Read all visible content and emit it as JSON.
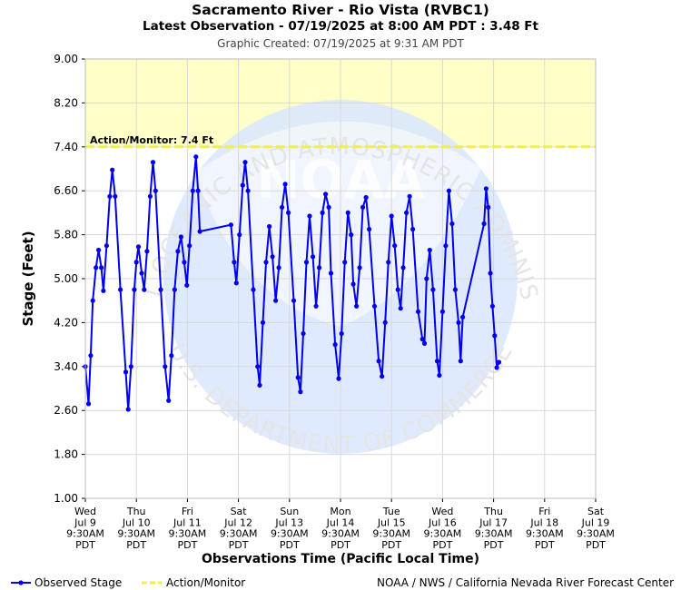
{
  "header": {
    "title": "Sacramento River - Rio Vista (RVBC1)",
    "latest": "Latest Observation - 07/19/2025 at 8:00 AM PDT : 3.48 Ft",
    "created": "Graphic Created: 07/19/2025 at 9:31 AM PDT"
  },
  "colors": {
    "observed": "#0000ee",
    "action_fill": "#ffffc8",
    "action_line": "#eeee55",
    "grid": "#d8d8d8",
    "watermark": "#dce8ff"
  },
  "chart_data": {
    "type": "line",
    "xlabel": "Observations Time (Pacific Local Time)",
    "ylabel": "Stage (Feet)",
    "ylim": [
      1.0,
      9.0
    ],
    "yticks": [
      "1.00",
      "1.80",
      "2.60",
      "3.40",
      "4.20",
      "5.00",
      "5.80",
      "6.60",
      "7.40",
      "8.20",
      "9.00"
    ],
    "x_range_days": [
      "Jul 9",
      "Jul 19"
    ],
    "xticks": [
      {
        "dow": "Wed",
        "date": "Jul 9",
        "time": "9:30AM",
        "tz": "PDT"
      },
      {
        "dow": "Thu",
        "date": "Jul 10",
        "time": "9:30AM",
        "tz": "PDT"
      },
      {
        "dow": "Fri",
        "date": "Jul 11",
        "time": "9:30AM",
        "tz": "PDT"
      },
      {
        "dow": "Sat",
        "date": "Jul 12",
        "time": "9:30AM",
        "tz": "PDT"
      },
      {
        "dow": "Sun",
        "date": "Jul 13",
        "time": "9:30AM",
        "tz": "PDT"
      },
      {
        "dow": "Mon",
        "date": "Jul 14",
        "time": "9:30AM",
        "tz": "PDT"
      },
      {
        "dow": "Tue",
        "date": "Jul 15",
        "time": "9:30AM",
        "tz": "PDT"
      },
      {
        "dow": "Wed",
        "date": "Jul 16",
        "time": "9:30AM",
        "tz": "PDT"
      },
      {
        "dow": "Thu",
        "date": "Jul 17",
        "time": "9:30AM",
        "tz": "PDT"
      },
      {
        "dow": "Fri",
        "date": "Jul 18",
        "time": "9:30AM",
        "tz": "PDT"
      },
      {
        "dow": "Sat",
        "date": "Jul 19",
        "time": "9:30AM",
        "tz": "PDT"
      }
    ],
    "action_monitor": {
      "value": 7.4,
      "label": "Action/Monitor: 7.4 Ft"
    },
    "series": [
      {
        "name": "Observed Stage",
        "points": [
          [
            "Jul 9 09:30",
            3.4
          ],
          [
            "Jul 9 11:00",
            2.72
          ],
          [
            "Jul 9 12:00",
            3.6
          ],
          [
            "Jul 9 13:00",
            4.6
          ],
          [
            "Jul 9 14:30",
            5.2
          ],
          [
            "Jul 9 15:45",
            5.52
          ],
          [
            "Jul 9 17:00",
            5.2
          ],
          [
            "Jul 9 18:00",
            4.78
          ],
          [
            "Jul 9 19:30",
            5.6
          ],
          [
            "Jul 9 21:00",
            6.5
          ],
          [
            "Jul 9 22:10",
            6.98
          ],
          [
            "Jul 9 23:30",
            6.5
          ],
          [
            "Jul 10 02:00",
            4.8
          ],
          [
            "Jul 10 04:30",
            3.3
          ],
          [
            "Jul 10 05:40",
            2.62
          ],
          [
            "Jul 10 07:00",
            3.4
          ],
          [
            "Jul 10 08:30",
            4.8
          ],
          [
            "Jul 10 09:30",
            5.3
          ],
          [
            "Jul 10 10:30",
            5.58
          ],
          [
            "Jul 10 12:00",
            5.1
          ],
          [
            "Jul 10 13:10",
            4.8
          ],
          [
            "Jul 10 14:30",
            5.5
          ],
          [
            "Jul 10 16:00",
            6.5
          ],
          [
            "Jul 10 17:20",
            7.12
          ],
          [
            "Jul 10 18:30",
            6.6
          ],
          [
            "Jul 10 21:00",
            4.8
          ],
          [
            "Jul 10 23:00",
            3.4
          ],
          [
            "Jul 11 00:40",
            2.78
          ],
          [
            "Jul 11 02:00",
            3.6
          ],
          [
            "Jul 11 03:30",
            4.8
          ],
          [
            "Jul 11 05:00",
            5.5
          ],
          [
            "Jul 11 06:30",
            5.76
          ],
          [
            "Jul 11 08:00",
            5.3
          ],
          [
            "Jul 11 09:15",
            4.88
          ],
          [
            "Jul 11 10:30",
            5.6
          ],
          [
            "Jul 11 12:00",
            6.6
          ],
          [
            "Jul 11 13:30",
            7.22
          ],
          [
            "Jul 11 14:30",
            6.6
          ],
          [
            "Jul 11 15:20",
            5.86
          ],
          [
            "Jul 12 06:00",
            5.98
          ],
          [
            "Jul 12 07:30",
            5.3
          ],
          [
            "Jul 12 08:30",
            4.92
          ],
          [
            "Jul 12 10:00",
            5.8
          ],
          [
            "Jul 12 11:30",
            6.7
          ],
          [
            "Jul 12 12:40",
            7.12
          ],
          [
            "Jul 12 14:00",
            6.6
          ],
          [
            "Jul 12 16:30",
            4.8
          ],
          [
            "Jul 12 18:30",
            3.4
          ],
          [
            "Jul 12 19:30",
            3.06
          ],
          [
            "Jul 12 21:00",
            4.2
          ],
          [
            "Jul 12 22:30",
            5.3
          ],
          [
            "Jul 13 00:00",
            5.95
          ],
          [
            "Jul 13 01:30",
            5.4
          ],
          [
            "Jul 13 03:00",
            4.6
          ],
          [
            "Jul 13 04:30",
            5.2
          ],
          [
            "Jul 13 06:00",
            6.3
          ],
          [
            "Jul 13 07:30",
            6.72
          ],
          [
            "Jul 13 09:00",
            6.2
          ],
          [
            "Jul 13 11:30",
            4.6
          ],
          [
            "Jul 13 13:30",
            3.2
          ],
          [
            "Jul 13 14:40",
            2.94
          ],
          [
            "Jul 13 16:00",
            4.0
          ],
          [
            "Jul 13 17:30",
            5.3
          ],
          [
            "Jul 13 19:00",
            6.14
          ],
          [
            "Jul 13 20:30",
            5.4
          ],
          [
            "Jul 13 22:00",
            4.5
          ],
          [
            "Jul 13 23:30",
            5.2
          ],
          [
            "Jul 14 01:00",
            6.2
          ],
          [
            "Jul 14 02:30",
            6.54
          ],
          [
            "Jul 14 04:00",
            6.3
          ],
          [
            "Jul 14 05:00",
            5.1
          ],
          [
            "Jul 14 07:00",
            3.8
          ],
          [
            "Jul 14 08:40",
            3.18
          ],
          [
            "Jul 14 10:00",
            4.0
          ],
          [
            "Jul 14 11:30",
            5.3
          ],
          [
            "Jul 14 13:00",
            6.2
          ],
          [
            "Jul 14 14:30",
            5.8
          ],
          [
            "Jul 14 15:30",
            4.9
          ],
          [
            "Jul 14 17:00",
            4.5
          ],
          [
            "Jul 14 18:30",
            5.2
          ],
          [
            "Jul 14 20:00",
            6.3
          ],
          [
            "Jul 14 21:30",
            6.48
          ],
          [
            "Jul 14 23:00",
            5.9
          ],
          [
            "Jul 15 01:30",
            4.5
          ],
          [
            "Jul 15 03:30",
            3.5
          ],
          [
            "Jul 15 05:00",
            3.22
          ],
          [
            "Jul 15 06:30",
            4.2
          ],
          [
            "Jul 15 08:00",
            5.3
          ],
          [
            "Jul 15 09:30",
            6.14
          ],
          [
            "Jul 15 11:00",
            5.6
          ],
          [
            "Jul 15 12:30",
            4.8
          ],
          [
            "Jul 15 13:45",
            4.46
          ],
          [
            "Jul 15 15:00",
            5.2
          ],
          [
            "Jul 15 16:30",
            6.2
          ],
          [
            "Jul 15 18:00",
            6.5
          ],
          [
            "Jul 15 19:30",
            5.9
          ],
          [
            "Jul 15 22:00",
            4.4
          ],
          [
            "Jul 16 00:00",
            3.9
          ],
          [
            "Jul 16 01:00",
            3.82
          ],
          [
            "Jul 16 02:00",
            5.0
          ],
          [
            "Jul 16 03:30",
            5.52
          ],
          [
            "Jul 16 05:00",
            4.8
          ],
          [
            "Jul 16 07:00",
            3.5
          ],
          [
            "Jul 16 08:00",
            3.24
          ],
          [
            "Jul 16 09:30",
            4.4
          ],
          [
            "Jul 16 11:00",
            5.6
          ],
          [
            "Jul 16 12:30",
            6.6
          ],
          [
            "Jul 16 14:00",
            6.0
          ],
          [
            "Jul 16 15:30",
            4.8
          ],
          [
            "Jul 16 17:00",
            4.2
          ],
          [
            "Jul 16 18:00",
            3.5
          ],
          [
            "Jul 16 19:00",
            4.3
          ],
          [
            "Jul 17 05:00",
            6.0
          ],
          [
            "Jul 17 06:00",
            6.64
          ],
          [
            "Jul 17 07:00",
            6.3
          ],
          [
            "Jul 17 08:00",
            5.1
          ],
          [
            "Jul 17 09:00",
            4.5
          ],
          [
            "Jul 17 10:00",
            3.96
          ],
          [
            "Jul 17 11:00",
            3.38
          ],
          [
            "Jul 17 12:00",
            3.48
          ]
        ]
      }
    ],
    "legend": [
      {
        "label": "Observed Stage"
      },
      {
        "label": "Action/Monitor"
      }
    ],
    "grid": true,
    "legend_position": "bottom-left"
  },
  "watermark": {
    "text_top": "NATIONAL OCEANIC AND ATMOSPHERIC ADMINISTRATION",
    "text_bottom": "U.S. DEPARTMENT OF COMMERCE",
    "logo_text": "NOAA"
  },
  "footer": {
    "credit": "NOAA / NWS / California Nevada River Forecast Center"
  }
}
